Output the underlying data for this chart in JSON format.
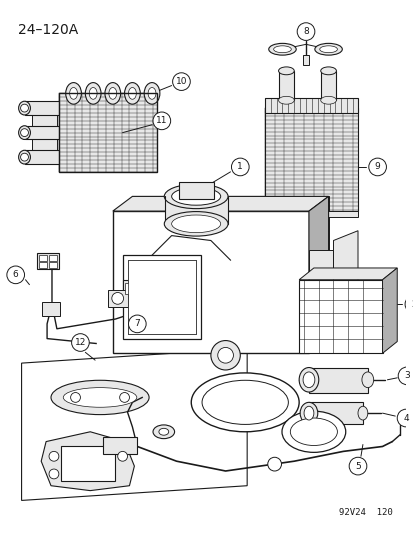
{
  "title": "24–120A",
  "footer": "92V24  120",
  "bg_color": "#ffffff",
  "line_color": "#1a1a1a",
  "gray_fill": "#d0d0d0",
  "light_gray": "#e8e8e8",
  "mid_gray": "#b0b0b0",
  "title_fontsize": 10,
  "footer_fontsize": 6.5,
  "label_fontsize": 6.5,
  "label_circle_r": 0.017
}
